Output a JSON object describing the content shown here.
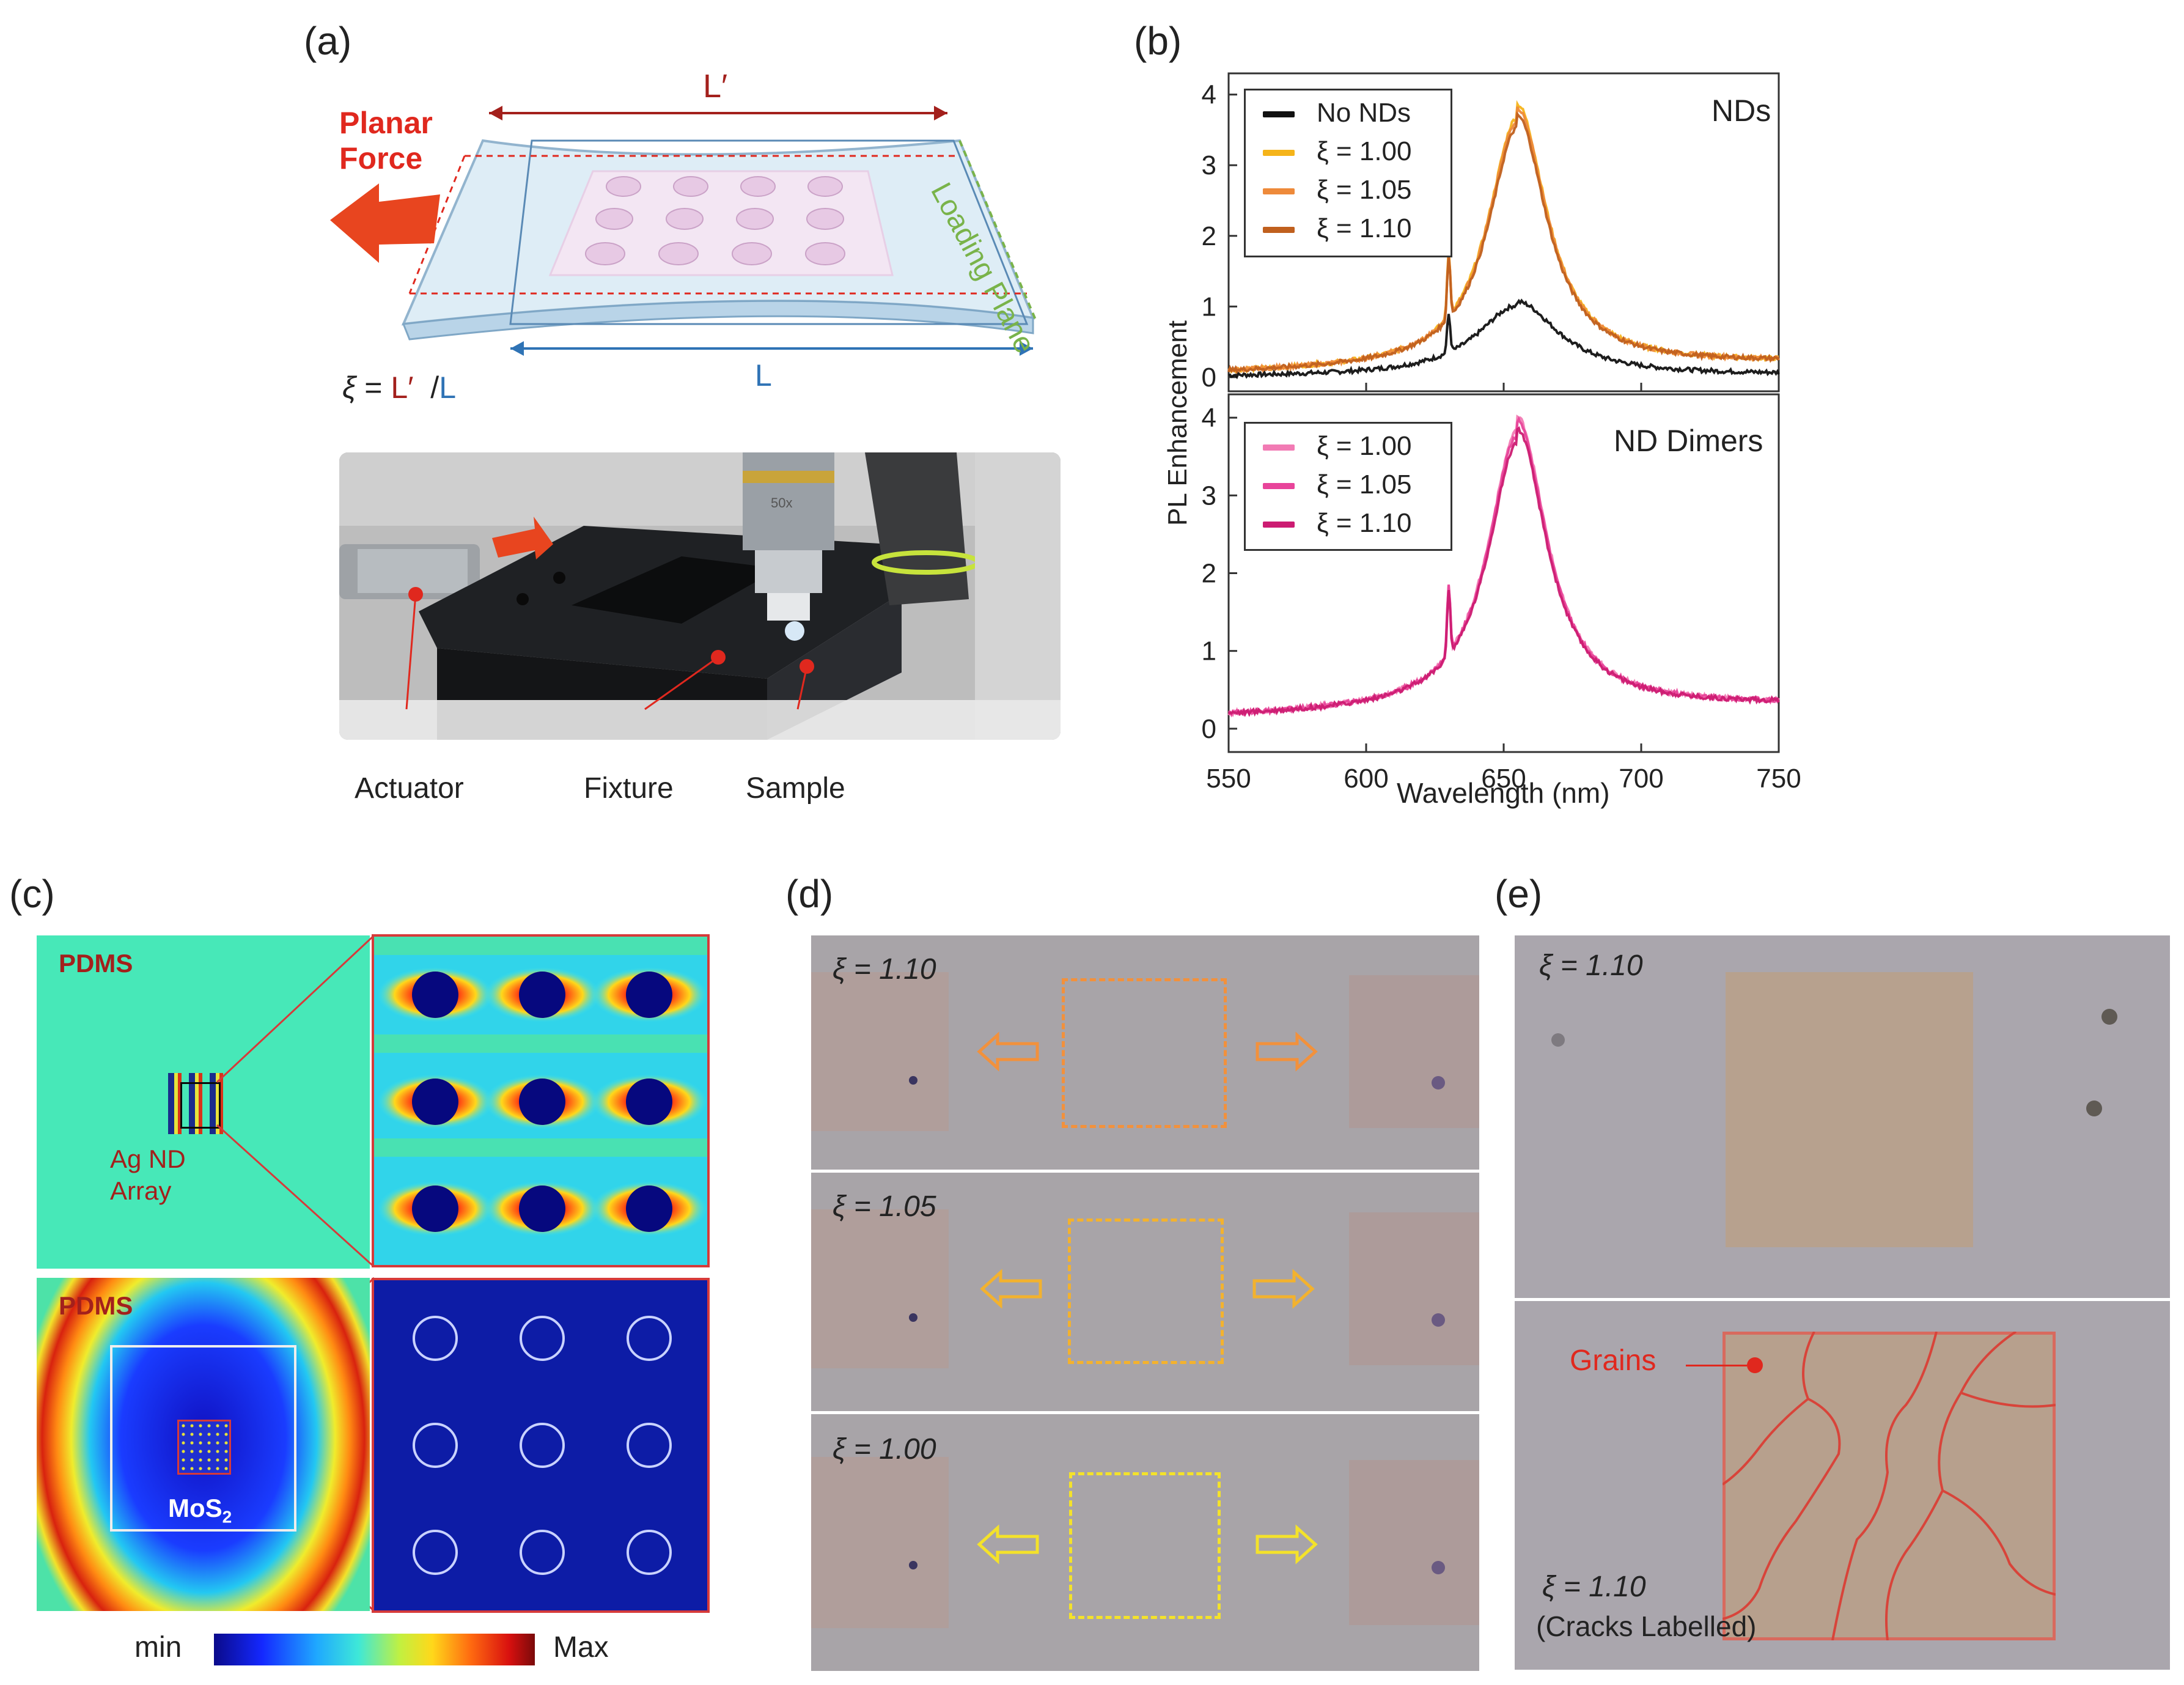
{
  "panels": {
    "a": {
      "label": "(a)",
      "planar_force": "Planar\nForce",
      "l_prime": "L′",
      "loading_plane": "Loading Plane",
      "l": "L",
      "xi_formula_xi": "ξ",
      "xi_formula_eq": " = ",
      "xi_formula_lp": "L′",
      "xi_formula_slash": "  /",
      "xi_formula_l": "L",
      "photo_labels": {
        "actuator": "Actuator",
        "fixture": "Fixture",
        "sample": "Sample"
      },
      "photo_lens_text": "50x",
      "colors": {
        "force": "#e0281e",
        "lprime": "#a3201c",
        "l": "#2f73b5",
        "plane": "#79b34a"
      }
    },
    "b": {
      "label": "(b)",
      "ylabel": "PL Enhancement",
      "xlabel": "Wavelength (nm)",
      "top_title": "NDs",
      "bottom_title": "ND Dimers",
      "top_legend": [
        "No NDs",
        "ξ = 1.00",
        "ξ = 1.05",
        "ξ = 1.10"
      ],
      "bottom_legend": [
        "ξ = 1.00",
        "ξ = 1.05",
        "ξ = 1.10"
      ],
      "x_ticks": [
        "550",
        "600",
        "650",
        "700",
        "750"
      ],
      "top_y_ticks": [
        "0",
        "1",
        "2",
        "3",
        "4"
      ],
      "bottom_y_ticks": [
        "0",
        "1",
        "2",
        "3",
        "4"
      ]
    },
    "c": {
      "label": "(c)",
      "pdms_top": "PDMS",
      "array_label": "Ag ND\nArray",
      "pdms_bottom": "PDMS",
      "mos2": "MoS",
      "mos2_sub": "2",
      "colorbar_min": "min",
      "colorbar_max": "Max"
    },
    "d": {
      "label": "(d)",
      "rows": [
        {
          "xi": "ξ = 1.10",
          "color": "#f2913c"
        },
        {
          "xi": "ξ = 1.05",
          "color": "#f3b22e"
        },
        {
          "xi": "ξ = 1.00",
          "color": "#f4e22a"
        }
      ]
    },
    "e": {
      "label": "(e)",
      "top_xi": "ξ = 1.10",
      "grains": "Grains",
      "bottom_xi": "ξ = 1.10",
      "cracks": "(Cracks Labelled)"
    }
  },
  "chart_data": [
    {
      "type": "line",
      "title": "NDs",
      "xlabel": "Wavelength (nm)",
      "ylabel": "PL Enhancement",
      "xlim": [
        550,
        750
      ],
      "ylim": [
        -0.2,
        4.3
      ],
      "series": [
        {
          "name": "No NDs",
          "color": "#111111",
          "peak": 1.0,
          "base": 0.0,
          "spike": 0.6
        },
        {
          "name": "ξ = 1.00",
          "color": "#f5b41a",
          "peak": 3.6,
          "base": 0.05,
          "spike": 1.05
        },
        {
          "name": "ξ = 1.05",
          "color": "#ee8a3a",
          "peak": 3.55,
          "base": 0.05,
          "spike": 1.0
        },
        {
          "name": "ξ = 1.10",
          "color": "#c0601e",
          "peak": 3.45,
          "base": 0.05,
          "spike": 1.0
        }
      ],
      "peak_wavelength": 655,
      "spike_wavelength": 630
    },
    {
      "type": "line",
      "title": "ND Dimers",
      "xlabel": "Wavelength (nm)",
      "ylabel": "PL Enhancement",
      "xlim": [
        550,
        750
      ],
      "ylim": [
        -0.3,
        4.3
      ],
      "series": [
        {
          "name": "ξ = 1.00",
          "color": "#f27bb4",
          "peak": 3.75,
          "base": 0.15,
          "spike": 1.0
        },
        {
          "name": "ξ = 1.05",
          "color": "#e8449a",
          "peak": 3.7,
          "base": 0.15,
          "spike": 1.0
        },
        {
          "name": "ξ = 1.10",
          "color": "#cc1c72",
          "peak": 3.6,
          "base": 0.15,
          "spike": 0.95
        }
      ],
      "peak_wavelength": 655,
      "spike_wavelength": 630
    }
  ]
}
